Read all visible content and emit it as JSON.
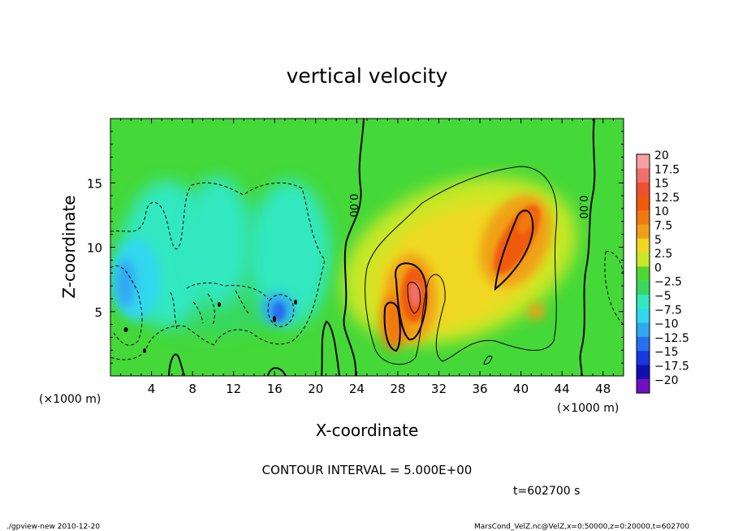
{
  "chart_data": {
    "type": "heatmap",
    "title": "vertical velocity",
    "xlabel": "X-coordinate",
    "ylabel": "Z-coordinate",
    "x_unit_left": "(×1000 m)",
    "x_unit_right": "(×1000 m)",
    "xlim": [
      0,
      50
    ],
    "ylim": [
      0,
      20
    ],
    "x_ticks": [
      4,
      8,
      12,
      16,
      20,
      24,
      28,
      32,
      36,
      40,
      44,
      48
    ],
    "y_ticks": [
      5,
      10,
      15
    ],
    "colorbar": {
      "levels": [
        20,
        17.5,
        15,
        12.5,
        10,
        7.5,
        5,
        2.5,
        0,
        -2.5,
        -5,
        -7.5,
        -10,
        -12.5,
        -15,
        -17.5,
        -20
      ],
      "labels": [
        "20",
        "17.5",
        "15",
        "12.5",
        "10",
        "7.5",
        "5",
        "2.5",
        "0",
        "−2.5",
        "−5",
        "−7.5",
        "−10",
        "−12.5",
        "−15",
        "−17.5",
        "−20"
      ],
      "colors": [
        "#f7a0a0",
        "#f07070",
        "#ee5030",
        "#f05a0a",
        "#f07a10",
        "#f0a018",
        "#f0d820",
        "#c8e828",
        "#50d830",
        "#38d860",
        "#30e8c0",
        "#30d8f0",
        "#30a8f0",
        "#2870f0",
        "#1838e0",
        "#1010b0",
        "#7010c0"
      ]
    },
    "features": [
      {
        "kind": "updraft",
        "x": 29.5,
        "z": 6.3,
        "value": 17.5
      },
      {
        "kind": "updraft",
        "x": 27.5,
        "z": 4.2,
        "value": 12.5
      },
      {
        "kind": "updraft",
        "x": 39.5,
        "z": 10.5,
        "value": 12.5
      },
      {
        "kind": "downdraft",
        "x": 16.3,
        "z": 5.0,
        "value": -12.5
      },
      {
        "kind": "downdraft",
        "x": 1.5,
        "z": 7.0,
        "value": -7.5
      }
    ],
    "contour_labels": [
      "0.00",
      "0.00"
    ],
    "contour_interval_text": "CONTOUR INTERVAL = 5.000E+00",
    "time_text": "t=602700 s"
  },
  "footer": {
    "left": "./gpview-new   2010-12-20",
    "right": "MarsCond_VelZ.nc@VelZ,x=0:50000,z=0:20000,t=602700"
  }
}
